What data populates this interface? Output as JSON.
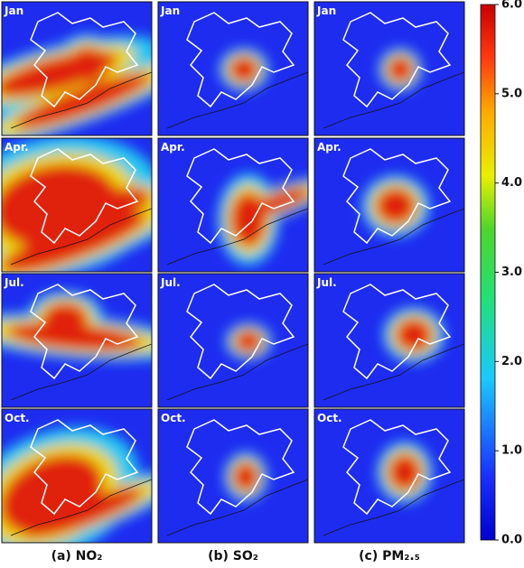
{
  "months": [
    "Jan",
    "Apr.",
    "Jul.",
    "Oct."
  ],
  "columns": [
    "(a) NO₂",
    "(b) SO₂",
    "(c) PM₂.₅"
  ],
  "colorbar": {
    "lim": [
      0,
      6
    ],
    "ticks": [
      {
        "value": 0,
        "label": "0.0"
      },
      {
        "value": 1,
        "label": "1.0"
      },
      {
        "value": 2,
        "label": "2.0"
      },
      {
        "value": 3,
        "label": "3.0"
      },
      {
        "value": 4,
        "label": "4.0"
      },
      {
        "value": 5,
        "label": "5.0"
      },
      {
        "value": 6,
        "label": "6.0"
      }
    ]
  }
}
